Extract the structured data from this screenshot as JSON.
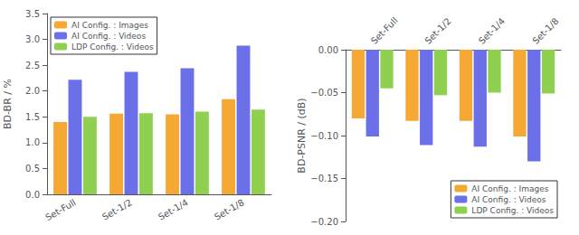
{
  "chart_data": [
    {
      "type": "bar",
      "categories": [
        "Set-Full",
        "Set-1/2",
        "Set-1/4",
        "Set-1/8"
      ],
      "series": [
        {
          "name": "AI Config. : Images",
          "color": "#F5A833",
          "values": [
            1.4,
            1.56,
            1.55,
            1.84
          ]
        },
        {
          "name": "AI Config. : Videos",
          "color": "#6B6FE8",
          "values": [
            2.22,
            2.37,
            2.44,
            2.88
          ]
        },
        {
          "name": "LDP Config. : Videos",
          "color": "#90D050",
          "values": [
            1.5,
            1.57,
            1.6,
            1.64
          ]
        }
      ],
      "ylabel": "BD-BR / %",
      "ylim": [
        0,
        3.5
      ],
      "yticks": [
        {
          "value": 0,
          "label": "0.0"
        },
        0.5,
        {
          "value": 1.0,
          "label": "1.0"
        },
        1.5,
        {
          "value": 2.0,
          "label": "2.0"
        },
        2.5,
        {
          "value": 3.0,
          "label": "3.0"
        },
        3.5
      ],
      "legend": "upper left",
      "grid": false
    },
    {
      "type": "bar",
      "categories": [
        "Set-Full",
        "Set-1/2",
        "Set-1/4",
        "Set-1/8"
      ],
      "series": [
        {
          "name": "AI Config. : Images",
          "color": "#F5A833",
          "values": [
            -0.08,
            -0.083,
            -0.083,
            -0.101
          ]
        },
        {
          "name": "AI Config. : Videos",
          "color": "#6B6FE8",
          "values": [
            -0.101,
            -0.111,
            -0.113,
            -0.13
          ]
        },
        {
          "name": "LDP Config. : Videos",
          "color": "#90D050",
          "values": [
            -0.045,
            -0.053,
            -0.05,
            -0.051
          ]
        }
      ],
      "ylabel": "BD-PSNR / (dB)",
      "ylim": [
        -0.2,
        0.0
      ],
      "yticks": [
        {
          "value": 0.0,
          "label": "0.00"
        },
        {
          "value": -0.05,
          "label": "−0.05"
        },
        {
          "value": -0.1,
          "label": "−0.10"
        },
        {
          "value": -0.15,
          "label": "−0.15"
        },
        {
          "value": -0.2,
          "label": "−0.20"
        }
      ],
      "legend": "lower right",
      "grid": false
    }
  ]
}
